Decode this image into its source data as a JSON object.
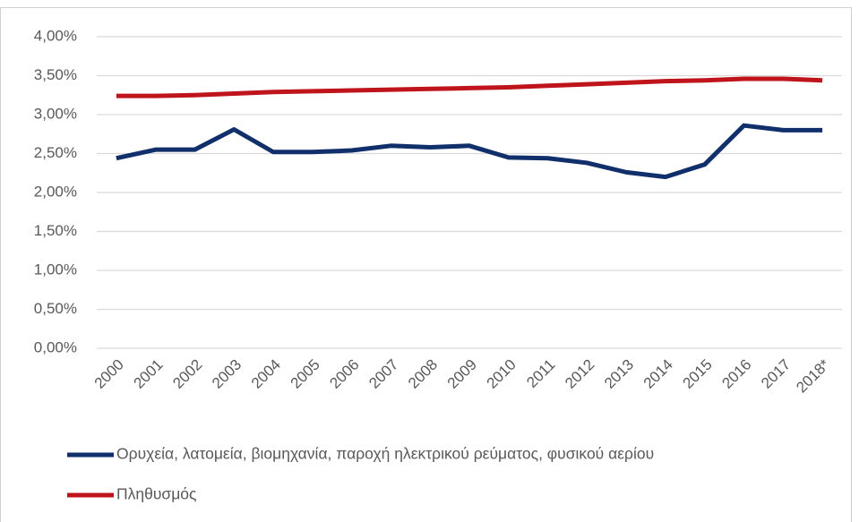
{
  "chart_data": {
    "type": "line",
    "categories": [
      "2000",
      "2001",
      "2002",
      "2003",
      "2004",
      "2005",
      "2006",
      "2007",
      "2008",
      "2009",
      "2010",
      "2011",
      "2012",
      "2013",
      "2014",
      "2015",
      "2016",
      "2017",
      "2018*"
    ],
    "series": [
      {
        "name": "Ορυχεία, λατομεία, βιομηχανία, παροχή ηλεκτρικού ρεύματος, φυσικού αερίου",
        "color": "#112f6b",
        "values": [
          2.44,
          2.55,
          2.55,
          2.81,
          2.52,
          2.52,
          2.54,
          2.6,
          2.58,
          2.6,
          2.45,
          2.44,
          2.38,
          2.26,
          2.2,
          2.36,
          2.86,
          2.8,
          2.8
        ]
      },
      {
        "name": "Πληθυσμός",
        "color": "#c0141c",
        "values": [
          3.24,
          3.24,
          3.25,
          3.27,
          3.29,
          3.3,
          3.31,
          3.32,
          3.33,
          3.34,
          3.35,
          3.37,
          3.39,
          3.41,
          3.43,
          3.44,
          3.46,
          3.46,
          3.44
        ]
      }
    ],
    "ylim": [
      0,
      4
    ],
    "yticks": [
      {
        "value": 0,
        "label": "0,00%"
      },
      {
        "value": 0.5,
        "label": "0,50%"
      },
      {
        "value": 1,
        "label": "1,00%"
      },
      {
        "value": 1.5,
        "label": "1,50%"
      },
      {
        "value": 2,
        "label": "2,00%"
      },
      {
        "value": 2.5,
        "label": "2,50%"
      },
      {
        "value": 3,
        "label": "3,00%"
      },
      {
        "value": 3.5,
        "label": "3,50%"
      },
      {
        "value": 4,
        "label": "4,00%"
      }
    ],
    "grid": true,
    "legend": "bottom"
  }
}
